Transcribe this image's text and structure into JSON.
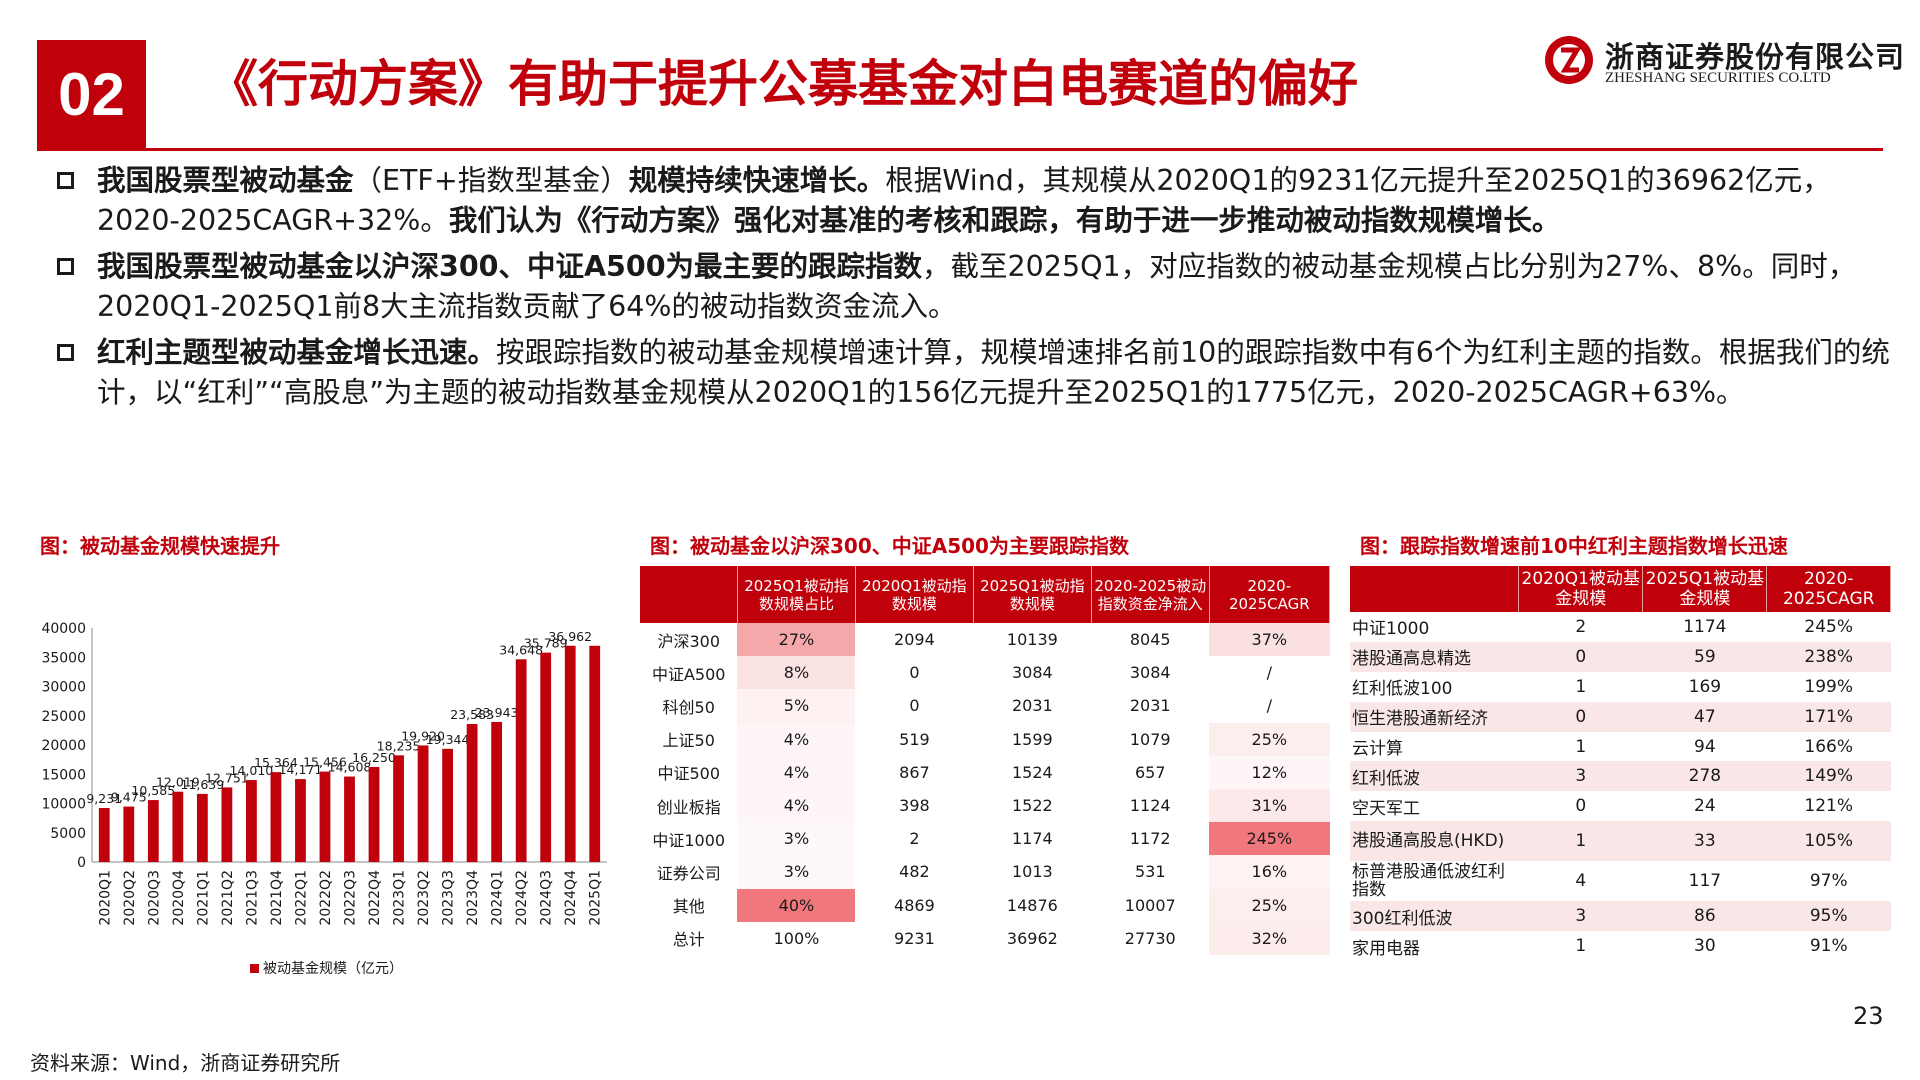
{
  "header": {
    "section_number": "02",
    "title": "《行动方案》有助于提升公募基金对白电赛道的偏好",
    "logo_cn": "浙商证券股份有限公司",
    "logo_en": "ZHESHANG SECURITIES CO.LTD",
    "brand_color": "#c0000b"
  },
  "bullets": [
    {
      "parts": [
        {
          "text": "我国股票型被动基金",
          "bold": true
        },
        {
          "text": "（ETF+指数型基金）",
          "bold": false
        },
        {
          "text": "规模持续快速增长。",
          "bold": true
        },
        {
          "text": "根据Wind，其规模从2020Q1的9231亿元提升至2025Q1的36962亿元，2020-2025CAGR+32%。",
          "bold": false
        },
        {
          "text": "我们认为《行动方案》强化对基准的考核和跟踪，有助于进一步推动被动指数规模增长。",
          "bold": true
        }
      ]
    },
    {
      "parts": [
        {
          "text": "我国股票型被动基金以沪深300、中证A500为最主要的跟踪指数",
          "bold": true
        },
        {
          "text": "，截至2025Q1，对应指数的被动基金规模占比分别为27%、8%。同时，2020Q1-2025Q1前8大主流指数贡献了64%的被动指数资金流入。",
          "bold": false
        }
      ]
    },
    {
      "parts": [
        {
          "text": "红利主题型被动基金增长迅速。",
          "bold": true
        },
        {
          "text": "按跟踪指数的被动基金规模增速计算，规模增速排名前10的跟踪指数中有6个为红利主题的指数。根据我们的统计，以“红利”“高股息”为主题的被动指数基金规模从2020Q1的156亿元提升至2025Q1的1775亿元，2020-2025CAGR+63%。",
          "bold": false
        }
      ]
    }
  ],
  "captions": {
    "chart": "图：被动基金规模快速提升",
    "table1": "图：被动基金以沪深300、中证A500为主要跟踪指数",
    "table2": "图：跟踪指数增速前10中红利主题指数增长迅速"
  },
  "chart_data": {
    "type": "bar",
    "categories": [
      "2020Q1",
      "2020Q2",
      "2020Q3",
      "2020Q4",
      "2021Q1",
      "2021Q2",
      "2021Q3",
      "2021Q4",
      "2022Q1",
      "2022Q2",
      "2022Q3",
      "2022Q4",
      "2023Q1",
      "2023Q2",
      "2023Q3",
      "2023Q4",
      "2024Q1",
      "2024Q2",
      "2024Q3",
      "2024Q4",
      "2025Q1"
    ],
    "values": [
      9231,
      9475,
      10585,
      12019,
      11639,
      12751,
      14010,
      15364,
      14171,
      15456,
      14608,
      16250,
      18235,
      19920,
      19344,
      23583,
      23943,
      34648,
      35789,
      36962,
      36962
    ],
    "data_labels": [
      "9,231",
      "9,475",
      "10,585",
      "12,019",
      "11,639",
      "12,751",
      "14,010",
      "15,364",
      "14,171",
      "15,456",
      "14,608",
      "16,250",
      "18,235",
      "19,920",
      "19,344",
      "23,583",
      "23,943",
      "34,648",
      "35,789",
      "36,962",
      ""
    ],
    "yticks": [
      "0",
      "5000",
      "10000",
      "15000",
      "20000",
      "25000",
      "30000",
      "35000",
      "40000"
    ],
    "ylim": [
      0,
      40000
    ],
    "legend": "被动基金规模（亿元）",
    "color": "#c0000b"
  },
  "table1": {
    "headers": [
      "",
      "2025Q1被动指数规模占比",
      "2020Q1被动指数规模",
      "2025Q1被动指数规模",
      "2020-2025被动指数资金净流入",
      "2020-2025CAGR"
    ],
    "rows": [
      [
        "沪深300",
        "27%",
        "2094",
        "10139",
        "8045",
        "37%"
      ],
      [
        "中证A500",
        "8%",
        "0",
        "3084",
        "3084",
        "/"
      ],
      [
        "科创50",
        "5%",
        "0",
        "2031",
        "2031",
        "/"
      ],
      [
        "上证50",
        "4%",
        "519",
        "1599",
        "1079",
        "25%"
      ],
      [
        "中证500",
        "4%",
        "867",
        "1524",
        "657",
        "12%"
      ],
      [
        "创业板指",
        "4%",
        "398",
        "1522",
        "1124",
        "31%"
      ],
      [
        "中证1000",
        "3%",
        "2",
        "1174",
        "1172",
        "245%"
      ],
      [
        "证券公司",
        "3%",
        "482",
        "1013",
        "531",
        "16%"
      ],
      [
        "其他",
        "40%",
        "4869",
        "14876",
        "10007",
        "25%"
      ],
      [
        "总计",
        "100%",
        "9231",
        "36962",
        "27730",
        "32%"
      ]
    ],
    "share_heat": [
      "#f4a8aa",
      "#fbe3e4",
      "#fdf1f1",
      "#fef6f6",
      "#fef6f6",
      "#fef6f6",
      "#fef8f8",
      "#fef8f8",
      "#f0787c",
      "#ffffff"
    ],
    "cagr_heat": [
      "#fbe0e1",
      "#ffffff",
      "#ffffff",
      "#fdeeee",
      "#fef6f6",
      "#fceaea",
      "#f0787c",
      "#fef2f2",
      "#fdeeee",
      "#fdecec"
    ]
  },
  "table2": {
    "headers": [
      "",
      "2020Q1被动基金规模",
      "2025Q1被动基金规模",
      "2020-2025CAGR"
    ],
    "rows": [
      [
        "中证1000",
        "2",
        "1174",
        "245%"
      ],
      [
        "港股通高息精选",
        "0",
        "59",
        "238%"
      ],
      [
        "红利低波100",
        "1",
        "169",
        "199%"
      ],
      [
        "恒生港股通新经济",
        "0",
        "47",
        "171%"
      ],
      [
        "云计算",
        "1",
        "94",
        "166%"
      ],
      [
        "红利低波",
        "3",
        "278",
        "149%"
      ],
      [
        "空天军工",
        "0",
        "24",
        "121%"
      ],
      [
        "港股通高股息(HKD)",
        "1",
        "33",
        "105%"
      ],
      [
        "标普港股通低波红利指数",
        "4",
        "117",
        "97%"
      ],
      [
        "300红利低波",
        "3",
        "86",
        "95%"
      ],
      [
        "家用电器",
        "1",
        "30",
        "91%"
      ]
    ]
  },
  "footer": {
    "source": "资料来源：Wind，浙商证券研究所",
    "page": "23"
  }
}
